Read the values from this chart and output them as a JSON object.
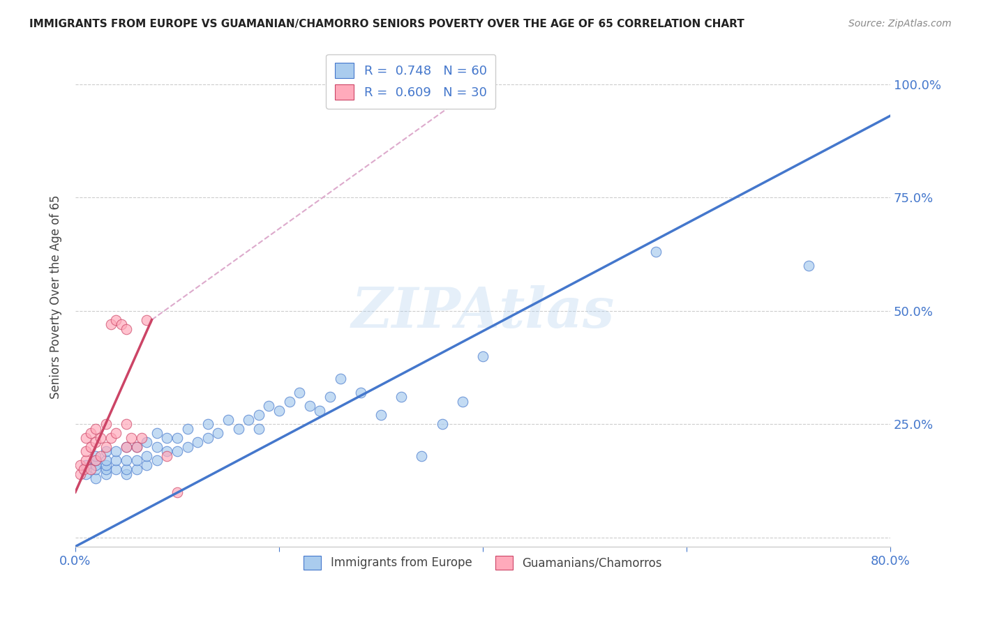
{
  "title": "IMMIGRANTS FROM EUROPE VS GUAMANIAN/CHAMORRO SENIORS POVERTY OVER THE AGE OF 65 CORRELATION CHART",
  "source": "Source: ZipAtlas.com",
  "ylabel": "Seniors Poverty Over the Age of 65",
  "watermark": "ZIPAtlas",
  "xlim": [
    0.0,
    0.8
  ],
  "ylim": [
    -0.02,
    1.08
  ],
  "legend_blue_label": "R =  0.748   N = 60",
  "legend_pink_label": "R =  0.609   N = 30",
  "blue_color": "#AACCEE",
  "pink_color": "#FFAABB",
  "blue_line_color": "#4477CC",
  "pink_line_color": "#CC4466",
  "axis_color": "#4477CC",
  "grid_color": "#CCCCCC",
  "background_color": "#FFFFFF",
  "blue_scatter_x": [
    0.01,
    0.01,
    0.02,
    0.02,
    0.02,
    0.02,
    0.02,
    0.03,
    0.03,
    0.03,
    0.03,
    0.03,
    0.04,
    0.04,
    0.04,
    0.05,
    0.05,
    0.05,
    0.05,
    0.06,
    0.06,
    0.06,
    0.07,
    0.07,
    0.07,
    0.08,
    0.08,
    0.08,
    0.09,
    0.09,
    0.1,
    0.1,
    0.11,
    0.11,
    0.12,
    0.13,
    0.13,
    0.14,
    0.15,
    0.16,
    0.17,
    0.18,
    0.18,
    0.19,
    0.2,
    0.21,
    0.22,
    0.23,
    0.24,
    0.25,
    0.26,
    0.28,
    0.3,
    0.32,
    0.34,
    0.36,
    0.38,
    0.4,
    0.57,
    0.72
  ],
  "blue_scatter_y": [
    0.14,
    0.16,
    0.13,
    0.15,
    0.16,
    0.17,
    0.18,
    0.14,
    0.15,
    0.16,
    0.17,
    0.19,
    0.15,
    0.17,
    0.19,
    0.14,
    0.15,
    0.17,
    0.2,
    0.15,
    0.17,
    0.2,
    0.16,
    0.18,
    0.21,
    0.17,
    0.2,
    0.23,
    0.19,
    0.22,
    0.19,
    0.22,
    0.2,
    0.24,
    0.21,
    0.22,
    0.25,
    0.23,
    0.26,
    0.24,
    0.26,
    0.24,
    0.27,
    0.29,
    0.28,
    0.3,
    0.32,
    0.29,
    0.28,
    0.31,
    0.35,
    0.32,
    0.27,
    0.31,
    0.18,
    0.25,
    0.3,
    0.4,
    0.63,
    0.6
  ],
  "pink_scatter_x": [
    0.005,
    0.005,
    0.008,
    0.01,
    0.01,
    0.01,
    0.015,
    0.015,
    0.015,
    0.02,
    0.02,
    0.02,
    0.025,
    0.025,
    0.03,
    0.03,
    0.035,
    0.035,
    0.04,
    0.04,
    0.045,
    0.05,
    0.05,
    0.05,
    0.055,
    0.06,
    0.065,
    0.07,
    0.09,
    0.1
  ],
  "pink_scatter_y": [
    0.14,
    0.16,
    0.15,
    0.17,
    0.19,
    0.22,
    0.15,
    0.2,
    0.23,
    0.17,
    0.21,
    0.24,
    0.18,
    0.22,
    0.2,
    0.25,
    0.22,
    0.47,
    0.23,
    0.48,
    0.47,
    0.2,
    0.46,
    0.25,
    0.22,
    0.2,
    0.22,
    0.48,
    0.18,
    0.1
  ],
  "blue_line_x0": 0.0,
  "blue_line_x1": 0.8,
  "blue_line_y0": -0.02,
  "blue_line_y1": 0.93,
  "pink_line_x0": 0.0,
  "pink_line_x1": 0.075,
  "pink_line_y0": 0.1,
  "pink_line_y1": 0.48,
  "dashed_line_x0": 0.075,
  "dashed_line_x1": 0.38,
  "dashed_line_y0": 0.48,
  "dashed_line_y1": 0.97,
  "scatter_size": 110
}
